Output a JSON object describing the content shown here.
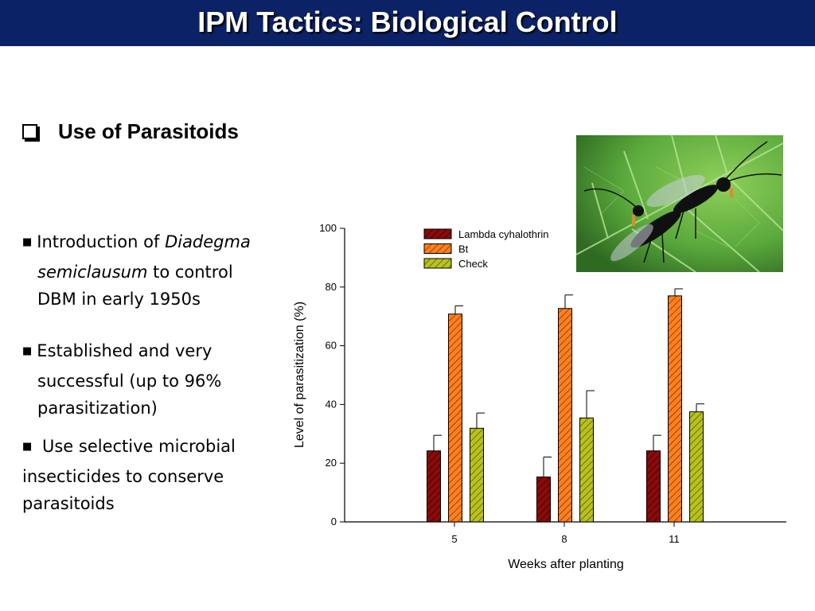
{
  "slide": {
    "title": "IPM Tactics: Biological Control",
    "section_title": "Use of Parasitoids"
  },
  "bullets": {
    "b1": {
      "text_a": "Introduction of ",
      "italic_a": "Diadegma",
      "italic_b": "semiclausum",
      "text_b": " to control",
      "line3": "DBM  in early 1950s"
    },
    "b2": {
      "line1": "Established and very",
      "line2": "successful (up to 96%",
      "line3": "parasitization)"
    },
    "b3": {
      "line1": " Use selective microbial",
      "line2": "insecticides to conserve",
      "line3": "parasitoids"
    }
  },
  "chart_data": {
    "type": "bar",
    "title": "",
    "xlabel": "Weeks after planting",
    "ylabel": "Level of parasitization (%)",
    "ylim": [
      0,
      100
    ],
    "yticks": [
      0,
      20,
      40,
      60,
      80,
      100
    ],
    "categories": [
      "5",
      "8",
      "11"
    ],
    "series": [
      {
        "name": "Lambda cyhalothrin",
        "color": "#8b0a0a",
        "values": [
          24.2,
          15.3,
          24.2
        ],
        "errors": [
          5.3,
          6.8,
          5.3
        ]
      },
      {
        "name": "Bt",
        "color": "#ff7f1e",
        "values": [
          70.8,
          72.7,
          77.0
        ],
        "errors": [
          2.8,
          4.6,
          2.4
        ]
      },
      {
        "name": "Check",
        "color": "#b8c21e",
        "values": [
          31.9,
          35.4,
          37.5
        ],
        "errors": [
          5.2,
          9.3,
          2.7
        ]
      }
    ]
  },
  "colors": {
    "title_bar": "#0b2266",
    "leaf": "#6cb84a"
  },
  "icons": {
    "checkbox": "checkbox-icon",
    "bullet": "square-bullet-icon",
    "photo": "wasp-on-leaf-photo"
  }
}
